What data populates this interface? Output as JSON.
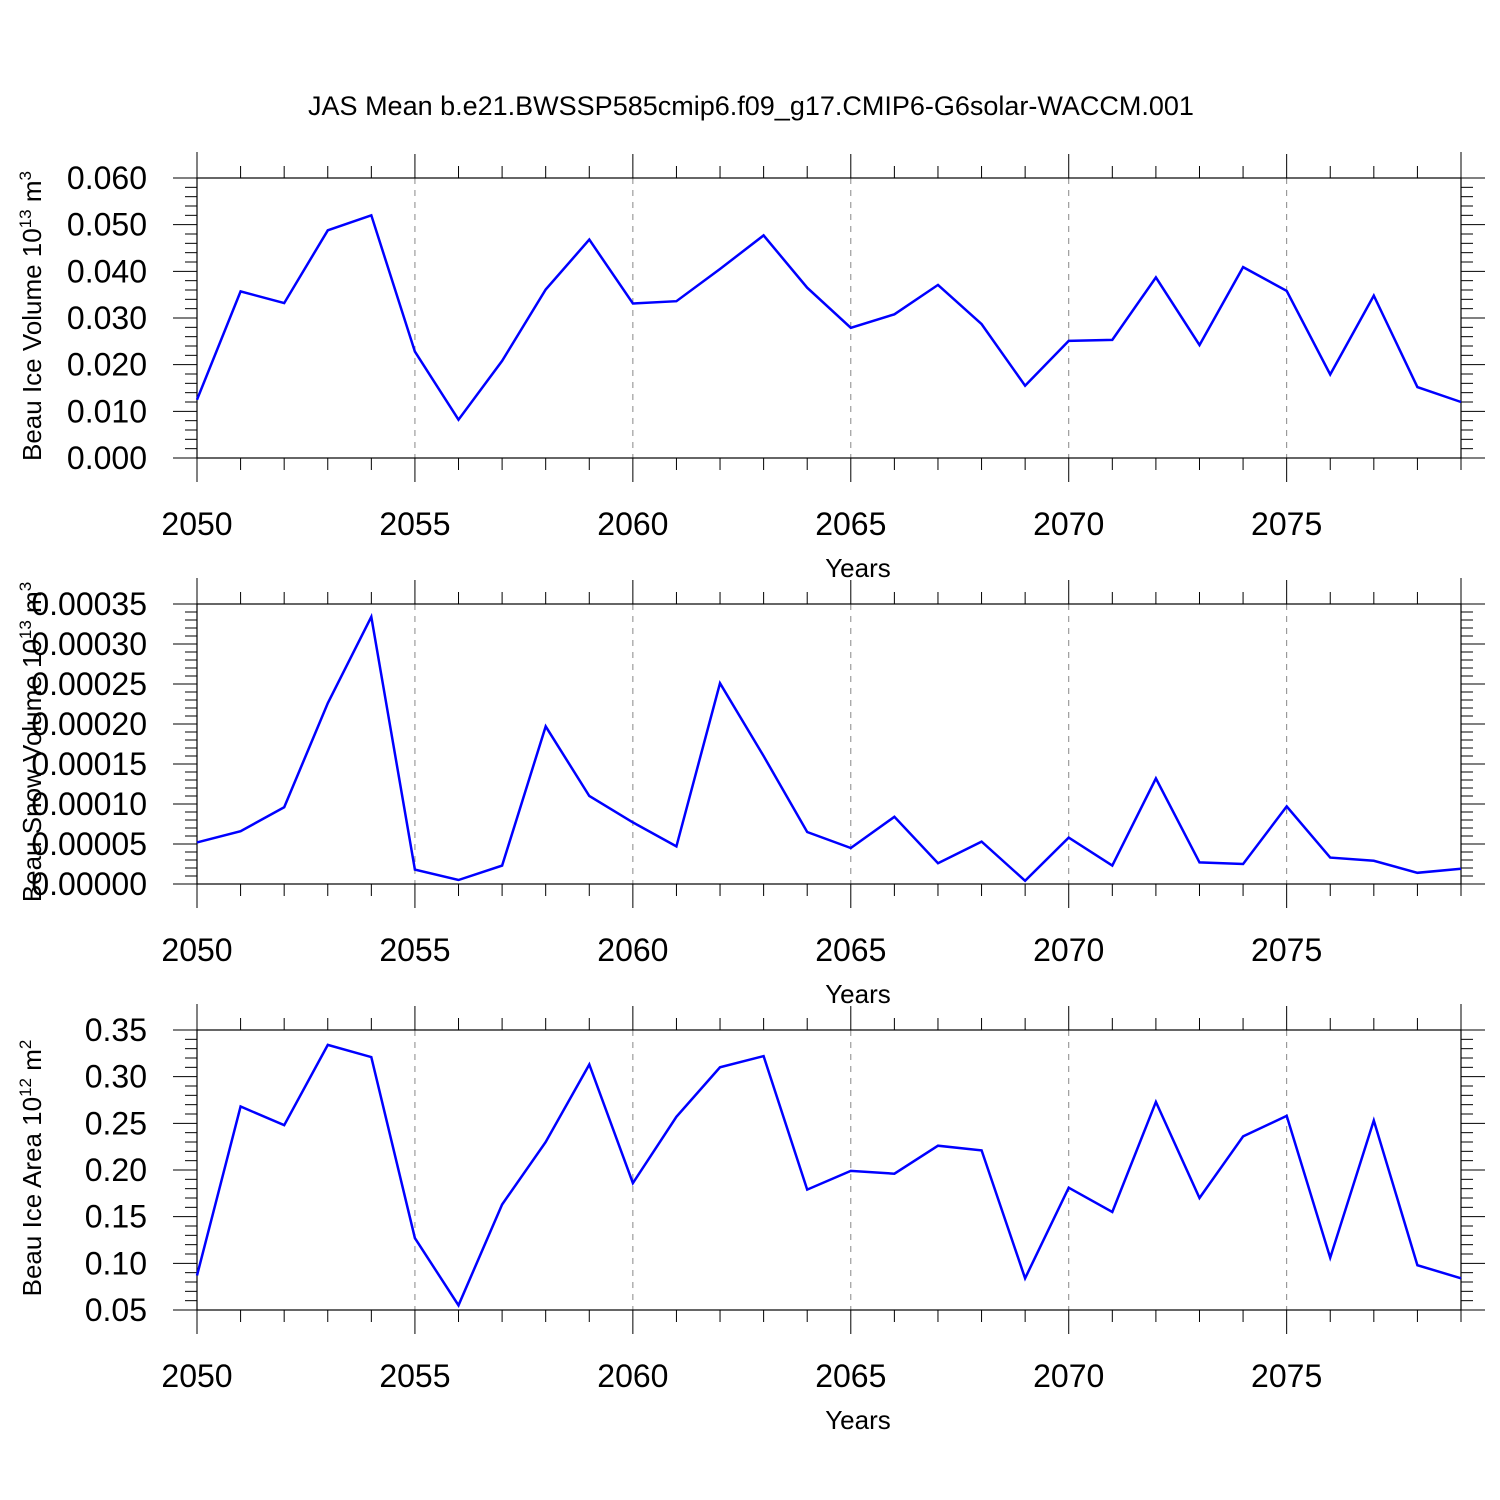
{
  "title": "JAS Mean b.e21.BWSSP585cmip6.f09_g17.CMIP6-G6solar-WACCM.001",
  "chart_data": [
    {
      "type": "line",
      "ylabel": "Beau Ice Volume 10",
      "ylabel_sup": "13",
      "ylabel_unit": " m",
      "ylabel_unit_sup": "3",
      "xlabel": "Years",
      "ylim": [
        0.0,
        0.06
      ],
      "yticks": [
        0.0,
        0.01,
        0.02,
        0.03,
        0.04,
        0.05,
        0.06
      ],
      "ytick_labels": [
        "0.000",
        "0.010",
        "0.020",
        "0.030",
        "0.040",
        "0.050",
        "0.060"
      ],
      "xlim": [
        2050,
        2079
      ],
      "xticks": [
        2050,
        2055,
        2060,
        2065,
        2070,
        2075
      ],
      "xtick_labels": [
        "2050",
        "2055",
        "2060",
        "2065",
        "2070",
        "2075"
      ],
      "color": "#0000ff",
      "series": [
        {
          "name": "Beau Ice Volume",
          "x": [
            2050,
            2051,
            2052,
            2053,
            2054,
            2055,
            2056,
            2057,
            2058,
            2059,
            2060,
            2061,
            2062,
            2063,
            2064,
            2065,
            2066,
            2067,
            2068,
            2069,
            2070,
            2071,
            2072,
            2073,
            2074,
            2075,
            2076,
            2077,
            2078,
            2079
          ],
          "values": [
            0.0125,
            0.0357,
            0.0332,
            0.0488,
            0.052,
            0.0228,
            0.0082,
            0.0208,
            0.0361,
            0.0468,
            0.0331,
            0.0336,
            0.0405,
            0.0477,
            0.0365,
            0.0279,
            0.0308,
            0.0371,
            0.0287,
            0.0155,
            0.0251,
            0.0253,
            0.0387,
            0.0242,
            0.0409,
            0.0358,
            0.0179,
            0.0348,
            0.0152,
            0.012
          ]
        }
      ]
    },
    {
      "type": "line",
      "ylabel": "Beau Snow Volume 10",
      "ylabel_sup": "13",
      "ylabel_unit": " m",
      "ylabel_unit_sup": "3",
      "xlabel": "Years",
      "ylim": [
        0.0,
        0.00035
      ],
      "yticks": [
        0.0,
        5e-05,
        0.0001,
        0.00015,
        0.0002,
        0.00025,
        0.0003,
        0.00035
      ],
      "ytick_labels": [
        "0.00000",
        "0.00005",
        "0.00010",
        "0.00015",
        "0.00020",
        "0.00025",
        "0.00030",
        "0.00035"
      ],
      "xlim": [
        2050,
        2079
      ],
      "xticks": [
        2050,
        2055,
        2060,
        2065,
        2070,
        2075
      ],
      "xtick_labels": [
        "2050",
        "2055",
        "2060",
        "2065",
        "2070",
        "2075"
      ],
      "color": "#0000ff",
      "series": [
        {
          "name": "Beau Snow Volume",
          "x": [
            2050,
            2051,
            2052,
            2053,
            2054,
            2055,
            2056,
            2057,
            2058,
            2059,
            2060,
            2061,
            2062,
            2063,
            2064,
            2065,
            2066,
            2067,
            2068,
            2069,
            2070,
            2071,
            2072,
            2073,
            2074,
            2075,
            2076,
            2077,
            2078,
            2079
          ],
          "values": [
            5.2e-05,
            6.6e-05,
            9.6e-05,
            0.000226,
            0.000334,
            1.8e-05,
            5e-06,
            2.3e-05,
            0.000197,
            0.00011,
            7.7e-05,
            4.7e-05,
            0.000251,
            0.00016,
            6.5e-05,
            4.5e-05,
            8.4e-05,
            2.6e-05,
            5.3e-05,
            4e-06,
            5.8e-05,
            2.3e-05,
            0.000132,
            2.7e-05,
            2.5e-05,
            9.7e-05,
            3.3e-05,
            2.9e-05,
            1.4e-05,
            1.9e-05
          ]
        }
      ]
    },
    {
      "type": "line",
      "ylabel": "Beau Ice Area 10",
      "ylabel_sup": "12",
      "ylabel_unit": " m",
      "ylabel_unit_sup": "2",
      "xlabel": "Years",
      "ylim": [
        0.05,
        0.35
      ],
      "yticks": [
        0.05,
        0.1,
        0.15,
        0.2,
        0.25,
        0.3,
        0.35
      ],
      "ytick_labels": [
        "0.05",
        "0.10",
        "0.15",
        "0.20",
        "0.25",
        "0.30",
        "0.35"
      ],
      "xlim": [
        2050,
        2079
      ],
      "xticks": [
        2050,
        2055,
        2060,
        2065,
        2070,
        2075
      ],
      "xtick_labels": [
        "2050",
        "2055",
        "2060",
        "2065",
        "2070",
        "2075"
      ],
      "color": "#0000ff",
      "series": [
        {
          "name": "Beau Ice Area",
          "x": [
            2050,
            2051,
            2052,
            2053,
            2054,
            2055,
            2056,
            2057,
            2058,
            2059,
            2060,
            2061,
            2062,
            2063,
            2064,
            2065,
            2066,
            2067,
            2068,
            2069,
            2070,
            2071,
            2072,
            2073,
            2074,
            2075,
            2076,
            2077,
            2078,
            2079
          ],
          "values": [
            0.087,
            0.268,
            0.248,
            0.334,
            0.321,
            0.127,
            0.055,
            0.163,
            0.23,
            0.313,
            0.186,
            0.257,
            0.31,
            0.322,
            0.179,
            0.199,
            0.196,
            0.226,
            0.221,
            0.084,
            0.181,
            0.155,
            0.273,
            0.17,
            0.236,
            0.258,
            0.106,
            0.253,
            0.098,
            0.084
          ]
        }
      ]
    }
  ]
}
